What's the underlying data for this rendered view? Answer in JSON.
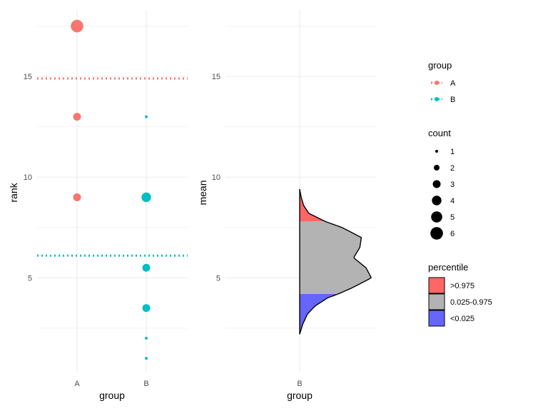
{
  "chart_data": [
    {
      "type": "scatter",
      "xlabel": "group",
      "ylabel": "rank",
      "categories": [
        "A",
        "B"
      ],
      "yticks": [
        5,
        10,
        15
      ],
      "ylim": [
        0.3,
        18.3
      ],
      "grid": true,
      "points": [
        {
          "group": "A",
          "y": 17.5,
          "count": 6
        },
        {
          "group": "A",
          "y": 13,
          "count": 3
        },
        {
          "group": "A",
          "y": 9,
          "count": 3
        },
        {
          "group": "B",
          "y": 13,
          "count": 1
        },
        {
          "group": "B",
          "y": 9,
          "count": 4
        },
        {
          "group": "B",
          "y": 5.5,
          "count": 3
        },
        {
          "group": "B",
          "y": 3.5,
          "count": 3
        },
        {
          "group": "B",
          "y": 2,
          "count": 1
        },
        {
          "group": "B",
          "y": 1,
          "count": 1
        }
      ],
      "hlines": [
        {
          "group": "A",
          "y": 14.9,
          "linetype": "dotted"
        },
        {
          "group": "B",
          "y": 6.1,
          "linetype": "dotted"
        }
      ]
    },
    {
      "type": "area",
      "xlabel": "group",
      "ylabel": "mean",
      "categories": [
        "B"
      ],
      "yticks": [
        5,
        10,
        15
      ],
      "ylim": [
        0.3,
        18.3
      ],
      "grid": true,
      "density_y": [
        2.2,
        2.7,
        3.2,
        3.6,
        4.0,
        4.2,
        4.5,
        5.0,
        5.5,
        6.0,
        6.5,
        7.0,
        7.5,
        7.8,
        8.2,
        8.6,
        9.0,
        9.4
      ],
      "density_halfwidth": [
        0.0,
        0.04,
        0.1,
        0.2,
        0.36,
        0.5,
        0.68,
        0.93,
        0.86,
        0.7,
        0.78,
        0.8,
        0.55,
        0.33,
        0.12,
        0.05,
        0.02,
        0.0
      ],
      "percentile_bands": [
        {
          "name": "<0.025",
          "from": 2.2,
          "to": 4.2
        },
        {
          "name": "0.025-0.975",
          "from": 4.2,
          "to": 7.8
        },
        {
          "name": ">0.975",
          "from": 7.8,
          "to": 9.4
        }
      ]
    }
  ],
  "colors": {
    "A": "#F8766D",
    "B": "#00BFC4",
    "high": "#FF6666",
    "mid": "#B3B3B3",
    "low": "#6666FF",
    "grid": "#EBEBEB"
  },
  "legends": {
    "group": {
      "title": "group",
      "items": [
        "A",
        "B"
      ]
    },
    "count": {
      "title": "count",
      "items": [
        "1",
        "2",
        "3",
        "4",
        "5",
        "6"
      ]
    },
    "percentile": {
      "title": "percentile",
      "items": [
        ">0.975",
        "0.025-0.975",
        "<0.025"
      ]
    }
  }
}
